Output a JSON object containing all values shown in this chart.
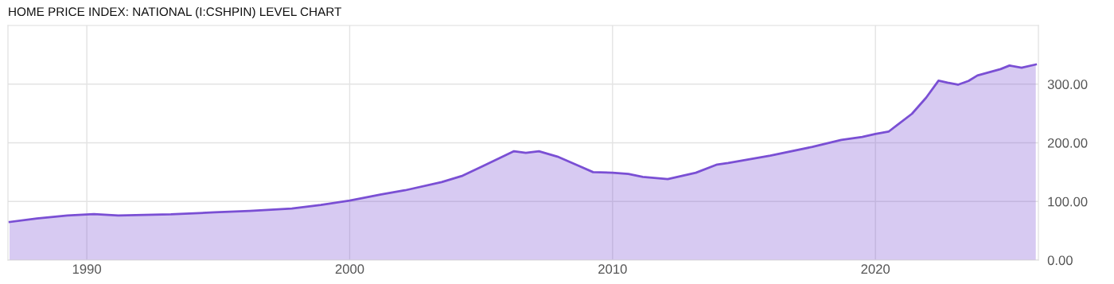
{
  "chart_data": {
    "type": "area",
    "title": "HOME PRICE INDEX: NATIONAL (I:CSHPIN) LEVEL CHART",
    "x": [
      1987.06,
      1988.1,
      1989.26,
      1990.27,
      1991.2,
      1993.2,
      1994.85,
      1996.2,
      1997.8,
      1998.9,
      2000.0,
      2001.2,
      2002.1,
      2003.5,
      2004.3,
      2005.1,
      2006.25,
      2006.7,
      2007.2,
      2007.9,
      2008.7,
      2009.26,
      2010.0,
      2010.6,
      2011.15,
      2012.1,
      2013.17,
      2013.98,
      2014.4,
      2016.0,
      2017.6,
      2018.7,
      2019.5,
      2020.0,
      2020.5,
      2020.85,
      2021.39,
      2021.93,
      2022.4,
      2022.74,
      2023.14,
      2023.54,
      2023.88,
      2024.76,
      2025.1,
      2025.56,
      2026.1
    ],
    "series": [
      {
        "color": "#7a4fd4",
        "values": [
          65,
          71,
          76,
          78.5,
          76,
          78,
          81.5,
          84,
          88,
          94,
          101.6,
          112,
          119,
          133,
          144,
          161,
          185.6,
          183,
          185.6,
          176.5,
          161,
          150,
          149,
          147,
          142,
          138,
          149,
          163,
          165.5,
          178,
          193,
          205,
          210,
          215,
          219,
          231,
          249.5,
          277,
          306,
          302.5,
          299,
          305.5,
          314.7,
          325.6,
          331.7,
          328,
          333.5
        ]
      }
    ],
    "xlim": [
      1987.0,
      2026.2
    ],
    "xticks": [
      1990,
      2000,
      2010,
      2020
    ],
    "ylim": [
      0,
      400
    ],
    "yticks": [
      {
        "value": 0,
        "label": "0.00"
      },
      {
        "value": 100,
        "label": "100.00"
      },
      {
        "value": 200,
        "label": "200.00"
      },
      {
        "value": 300,
        "label": "300.00"
      }
    ],
    "grid": true
  }
}
